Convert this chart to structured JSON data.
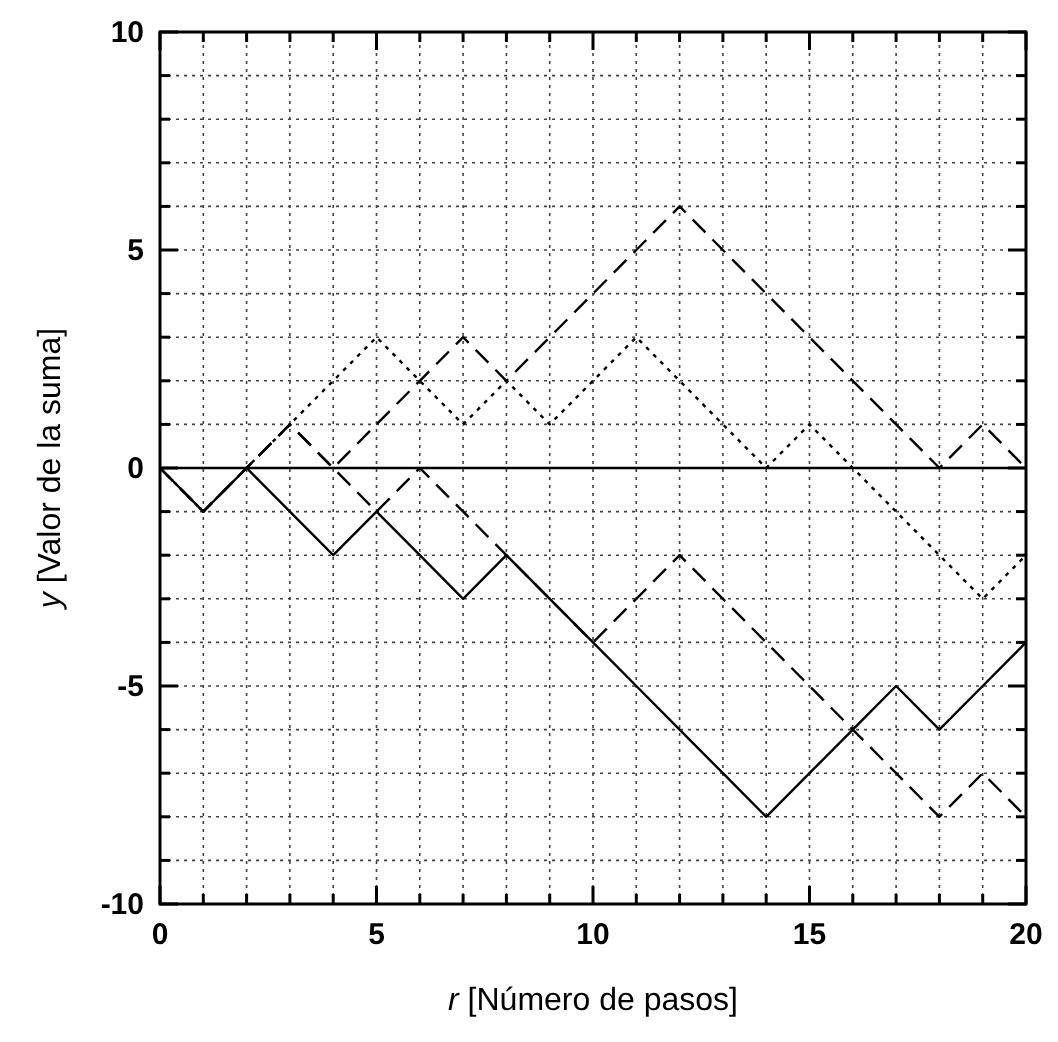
{
  "chart_data": {
    "type": "line",
    "xlabel": "r [Número de pasos]",
    "ylabel": "y [Valor de la suma]",
    "x": [
      0,
      1,
      2,
      3,
      4,
      5,
      6,
      7,
      8,
      9,
      10,
      11,
      12,
      13,
      14,
      15,
      16,
      17,
      18,
      19,
      20
    ],
    "series": [
      {
        "color": "#000000",
        "line_style": "solid",
        "values": [
          0,
          -1,
          0,
          -1,
          -2,
          -1,
          -2,
          -3,
          -2,
          -3,
          -4,
          -5,
          -6,
          -7,
          -8,
          -7,
          -6,
          -5,
          -6,
          -5,
          -4
        ]
      },
      {
        "color": "#000000",
        "line_style": "dashed",
        "values": [
          0,
          -1,
          0,
          1,
          0,
          -1,
          0,
          -1,
          -2,
          -3,
          -4,
          -3,
          -2,
          -3,
          -4,
          -5,
          -6,
          -7,
          -8,
          -7,
          -8
        ]
      },
      {
        "color": "#000000",
        "line_style": "dashed",
        "values": [
          0,
          -1,
          0,
          1,
          0,
          1,
          2,
          3,
          2,
          3,
          4,
          5,
          6,
          5,
          4,
          3,
          2,
          1,
          0,
          1,
          0
        ]
      },
      {
        "color": "#000000",
        "line_style": "dotted",
        "values": [
          0,
          -1,
          0,
          1,
          2,
          3,
          2,
          1,
          2,
          1,
          2,
          3,
          2,
          1,
          0,
          1,
          0,
          -1,
          -2,
          -3,
          -2
        ]
      }
    ],
    "xlim": [
      0,
      20
    ],
    "ylim": [
      -10,
      10
    ],
    "xticks": [
      0,
      {
        "value": 1,
        "label": null
      },
      {
        "value": 2,
        "label": null
      },
      {
        "value": 3,
        "label": null
      },
      {
        "value": 4,
        "label": null
      },
      5,
      {
        "value": 6,
        "label": null
      },
      {
        "value": 7,
        "label": null
      },
      {
        "value": 8,
        "label": null
      },
      {
        "value": 9,
        "label": null
      },
      10,
      {
        "value": 11,
        "label": null
      },
      {
        "value": 12,
        "label": null
      },
      {
        "value": 13,
        "label": null
      },
      {
        "value": 14,
        "label": null
      },
      15,
      {
        "value": 16,
        "label": null
      },
      {
        "value": 17,
        "label": null
      },
      {
        "value": 18,
        "label": null
      },
      {
        "value": 19,
        "label": null
      },
      20
    ],
    "yticks": [
      -10,
      {
        "value": -9,
        "label": null
      },
      {
        "value": -8,
        "label": null
      },
      {
        "value": -7,
        "label": null
      },
      {
        "value": -6,
        "label": null
      },
      -5,
      {
        "value": -4,
        "label": null
      },
      {
        "value": -3,
        "label": null
      },
      {
        "value": -2,
        "label": null
      },
      {
        "value": -1,
        "label": null
      },
      0,
      {
        "value": 1,
        "label": null
      },
      {
        "value": 2,
        "label": null
      },
      {
        "value": 3,
        "label": null
      },
      {
        "value": 4,
        "label": null
      },
      5,
      {
        "value": 6,
        "label": null
      },
      {
        "value": 7,
        "label": null
      },
      {
        "value": 8,
        "label": null
      },
      {
        "value": 9,
        "label": null
      },
      10
    ],
    "grid": true,
    "marker": "none",
    "ref_lines": [
      {
        "axis": "y",
        "value": 0,
        "color": "#000000",
        "line_style": "solid"
      }
    ]
  }
}
